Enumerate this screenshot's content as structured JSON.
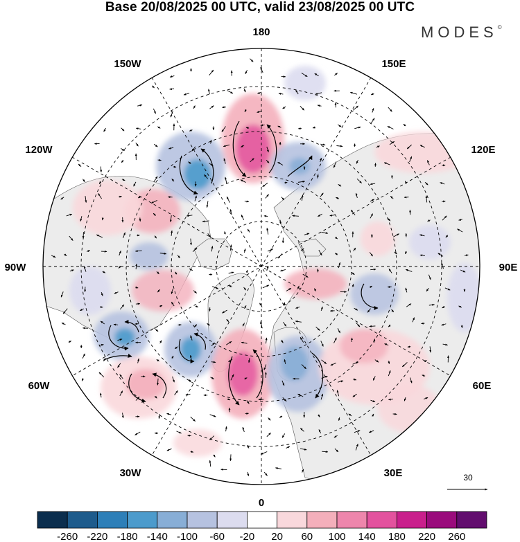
{
  "header": {
    "title": "Base 20/08/2025 00 UTC, valid 23/08/2025 00 UTC",
    "brand": "MODES",
    "brand_mark": "©"
  },
  "map": {
    "projection": "north-polar-stereographic",
    "longitude_labels": {
      "top": "180",
      "bottom": "0",
      "left": "90W",
      "right": "90E",
      "upper_left_150": "150W",
      "upper_right_150": "150E",
      "upper_left_120": "120W",
      "upper_right_120": "120E",
      "lower_left_60": "60W",
      "lower_right_60": "60E",
      "lower_left_30": "30W",
      "lower_right_30": "30E"
    },
    "reference_vector_label": "30",
    "anomaly_centers": [
      {
        "sign": "positive",
        "value": 180,
        "region": "near 180"
      },
      {
        "sign": "negative",
        "value": -160,
        "region": "150W-160W"
      },
      {
        "sign": "negative",
        "value": -80,
        "region": "165E"
      },
      {
        "sign": "positive",
        "value": 80,
        "region": "125W"
      },
      {
        "sign": "positive",
        "value": 60,
        "region": "100W-110W"
      },
      {
        "sign": "negative",
        "value": -60,
        "region": "90W"
      },
      {
        "sign": "positive",
        "value": 60,
        "region": "80W"
      },
      {
        "sign": "negative",
        "value": -140,
        "region": "65W"
      },
      {
        "sign": "negative",
        "value": -120,
        "region": "35W"
      },
      {
        "sign": "positive",
        "value": 140,
        "region": "10W-0"
      },
      {
        "sign": "positive",
        "value": 80,
        "region": "50W"
      },
      {
        "sign": "negative",
        "value": -100,
        "region": "20E"
      },
      {
        "sign": "positive",
        "value": 60,
        "region": "75E"
      },
      {
        "sign": "negative",
        "value": -60,
        "region": "80E"
      },
      {
        "sign": "positive",
        "value": 60,
        "region": "40E-60E"
      },
      {
        "sign": "positive",
        "value": 40,
        "region": "120E-140E"
      }
    ]
  },
  "colorbar": {
    "ticks": [
      "-260",
      "-220",
      "-180",
      "-140",
      "-100",
      "-60",
      "-20",
      "20",
      "60",
      "100",
      "140",
      "180",
      "220",
      "260"
    ],
    "colors": [
      "#0b2e4e",
      "#1d5b8c",
      "#2d7fb8",
      "#4c9bcc",
      "#88aed6",
      "#b6c2e0",
      "#dcdcef",
      "#ffffff",
      "#f9d8dc",
      "#f4afbb",
      "#ee86ac",
      "#e3529e",
      "#c91f8c",
      "#9a0b7c",
      "#620d6e"
    ]
  },
  "colors": {
    "land_fill": "#ececec",
    "grid": "#000000"
  }
}
